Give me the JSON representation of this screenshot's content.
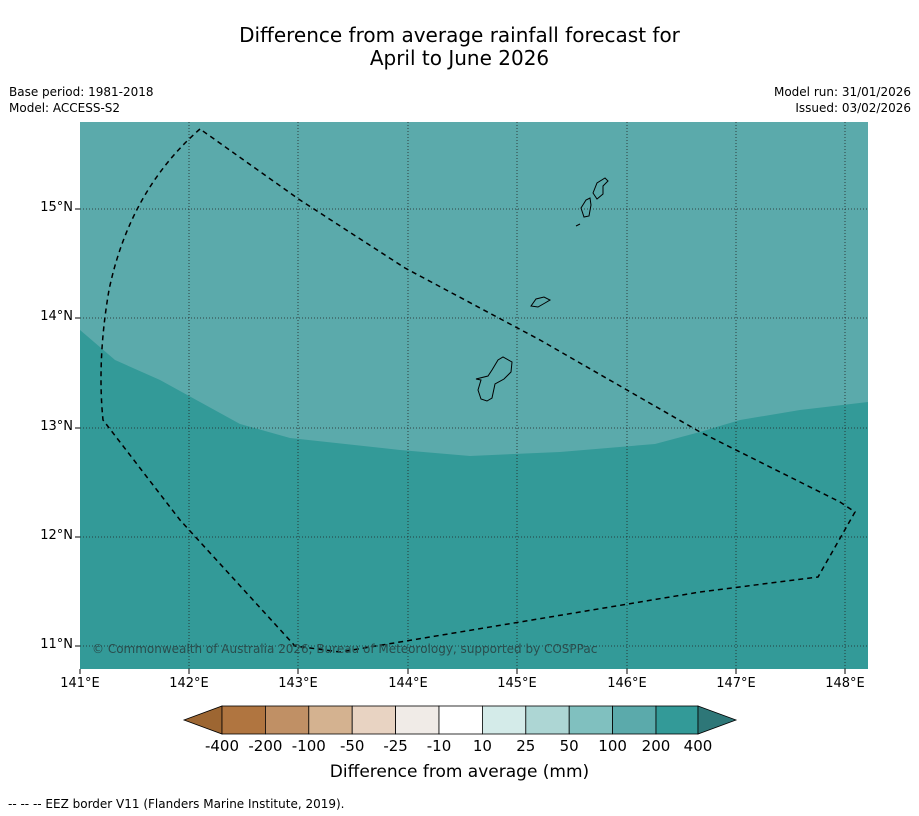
{
  "title": {
    "line1": "Difference from average rainfall forecast for",
    "line2": "April to June 2026"
  },
  "meta": {
    "base_period": "Base period: 1981-2018",
    "model": "Model: ACCESS-S2",
    "model_run": "Model run: 31/01/2026",
    "issued": "Issued: 03/02/2026"
  },
  "map": {
    "lat_labels": [
      "15°N",
      "14°N",
      "13°N",
      "12°N",
      "11°N"
    ],
    "lon_labels": [
      "141°E",
      "142°E",
      "143°E",
      "144°E",
      "145°E",
      "146°E",
      "147°E",
      "148°E"
    ],
    "copyright": "© Commonwealth of Australia 2026, Bureau of Meteorology, supported by COSPPac",
    "fill_colors": {
      "wet_100_200": "#5baaab",
      "wet_200_400": "#339a98"
    }
  },
  "colorbar": {
    "ticks": [
      "-400",
      "-200",
      "-100",
      "-50",
      "-25",
      "-10",
      "10",
      "25",
      "50",
      "100",
      "200",
      "400"
    ],
    "colors": [
      "#9d6632",
      "#b07540",
      "#c09065",
      "#d4b290",
      "#e8d3c2",
      "#f0ebe7",
      "#ffffff",
      "#d4ebe9",
      "#add6d4",
      "#80c0bf",
      "#5baaab",
      "#339a98",
      "#2e7778"
    ],
    "label": "Difference from average (mm)"
  },
  "legend": {
    "eez": "--  --  -- EEZ border V11 (Flanders Marine Institute, 2019)."
  }
}
